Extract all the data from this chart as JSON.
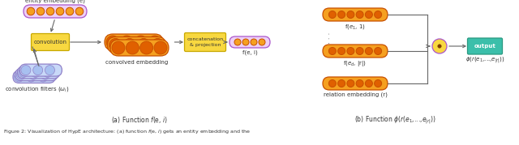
{
  "bg_color": "#ffffff",
  "orange": "#F5A020",
  "dark_orange": "#C85000",
  "purple": "#AA55CC",
  "light_purple_fill": "#EED0F5",
  "light_blue_fill": "#C8D8F8",
  "light_blue_border": "#9080C8",
  "yellow_fill": "#F8D840",
  "yellow_border": "#C8A800",
  "teal_fill": "#3BBFAA",
  "teal_border": "#2A9980",
  "gray_arrow": "#666666",
  "text_color": "#333333",
  "caption_a": "(a) Function $f$(e, $i$)",
  "caption_b": "(b) Function $\\phi$($r$($e_1$,...,$e_{|r|}$))",
  "bottom_text": "Figure 2: Visualization of HypE architecture: (a) function $f$(e, $i$) gets an entity embedding and the"
}
